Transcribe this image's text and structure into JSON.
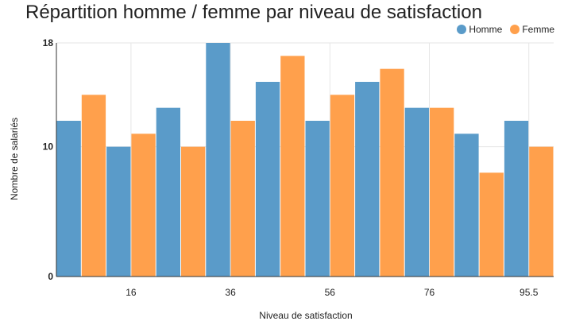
{
  "chart_data": {
    "type": "bar",
    "title": "Répartition homme / femme par niveau de satisfaction",
    "xlabel": "Niveau de satisfaction",
    "ylabel": "Nombre de salariés",
    "x_ticks": [
      "16",
      "36",
      "56",
      "76",
      "95.5"
    ],
    "y_ticks": [
      "0",
      "10",
      "18"
    ],
    "ylim": [
      0,
      18
    ],
    "grid": true,
    "legend_position": "top-right",
    "series": [
      {
        "name": "Homme",
        "color": "#5a9bc9",
        "values": [
          12,
          10,
          13,
          18,
          15,
          12,
          15,
          13,
          11,
          12
        ]
      },
      {
        "name": "Femme",
        "color": "#ffa04c",
        "values": [
          14,
          11,
          10,
          12,
          17,
          14,
          16,
          13,
          8,
          10
        ]
      }
    ]
  }
}
